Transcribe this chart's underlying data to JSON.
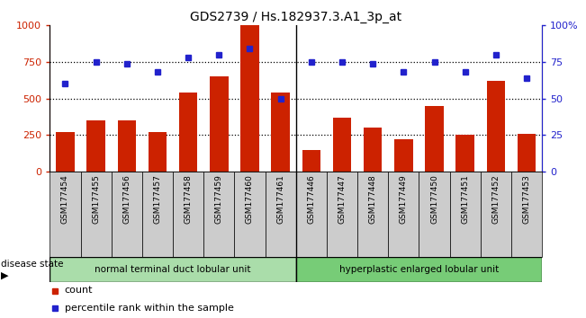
{
  "title": "GDS2739 / Hs.182937.3.A1_3p_at",
  "categories": [
    "GSM177454",
    "GSM177455",
    "GSM177456",
    "GSM177457",
    "GSM177458",
    "GSM177459",
    "GSM177460",
    "GSM177461",
    "GSM177446",
    "GSM177447",
    "GSM177448",
    "GSM177449",
    "GSM177450",
    "GSM177451",
    "GSM177452",
    "GSM177453"
  ],
  "bar_values": [
    270,
    350,
    350,
    270,
    540,
    650,
    1000,
    540,
    145,
    370,
    300,
    220,
    450,
    250,
    620,
    260
  ],
  "dot_values": [
    60,
    75,
    74,
    68,
    78,
    80,
    84,
    50,
    75,
    75,
    74,
    68,
    75,
    68,
    80,
    64
  ],
  "bar_color": "#cc2200",
  "dot_color": "#2222cc",
  "group1_label": "normal terminal duct lobular unit",
  "group2_label": "hyperplastic enlarged lobular unit",
  "group1_color": "#aaddaa",
  "group2_color": "#77cc77",
  "disease_state_label": "disease state",
  "legend_bar_label": "count",
  "legend_dot_label": "percentile rank within the sample",
  "ylim_left": [
    0,
    1000
  ],
  "ylim_right": [
    0,
    100
  ],
  "yticks_left": [
    0,
    250,
    500,
    750,
    1000
  ],
  "yticks_right": [
    0,
    25,
    50,
    75,
    100
  ],
  "ytick_right_labels": [
    "0",
    "25",
    "50",
    "75",
    "100%"
  ],
  "group1_count": 8,
  "group2_count": 8,
  "tick_bg_color": "#cccccc",
  "hline_values": [
    250,
    500,
    750
  ],
  "spine_color": "#888888"
}
